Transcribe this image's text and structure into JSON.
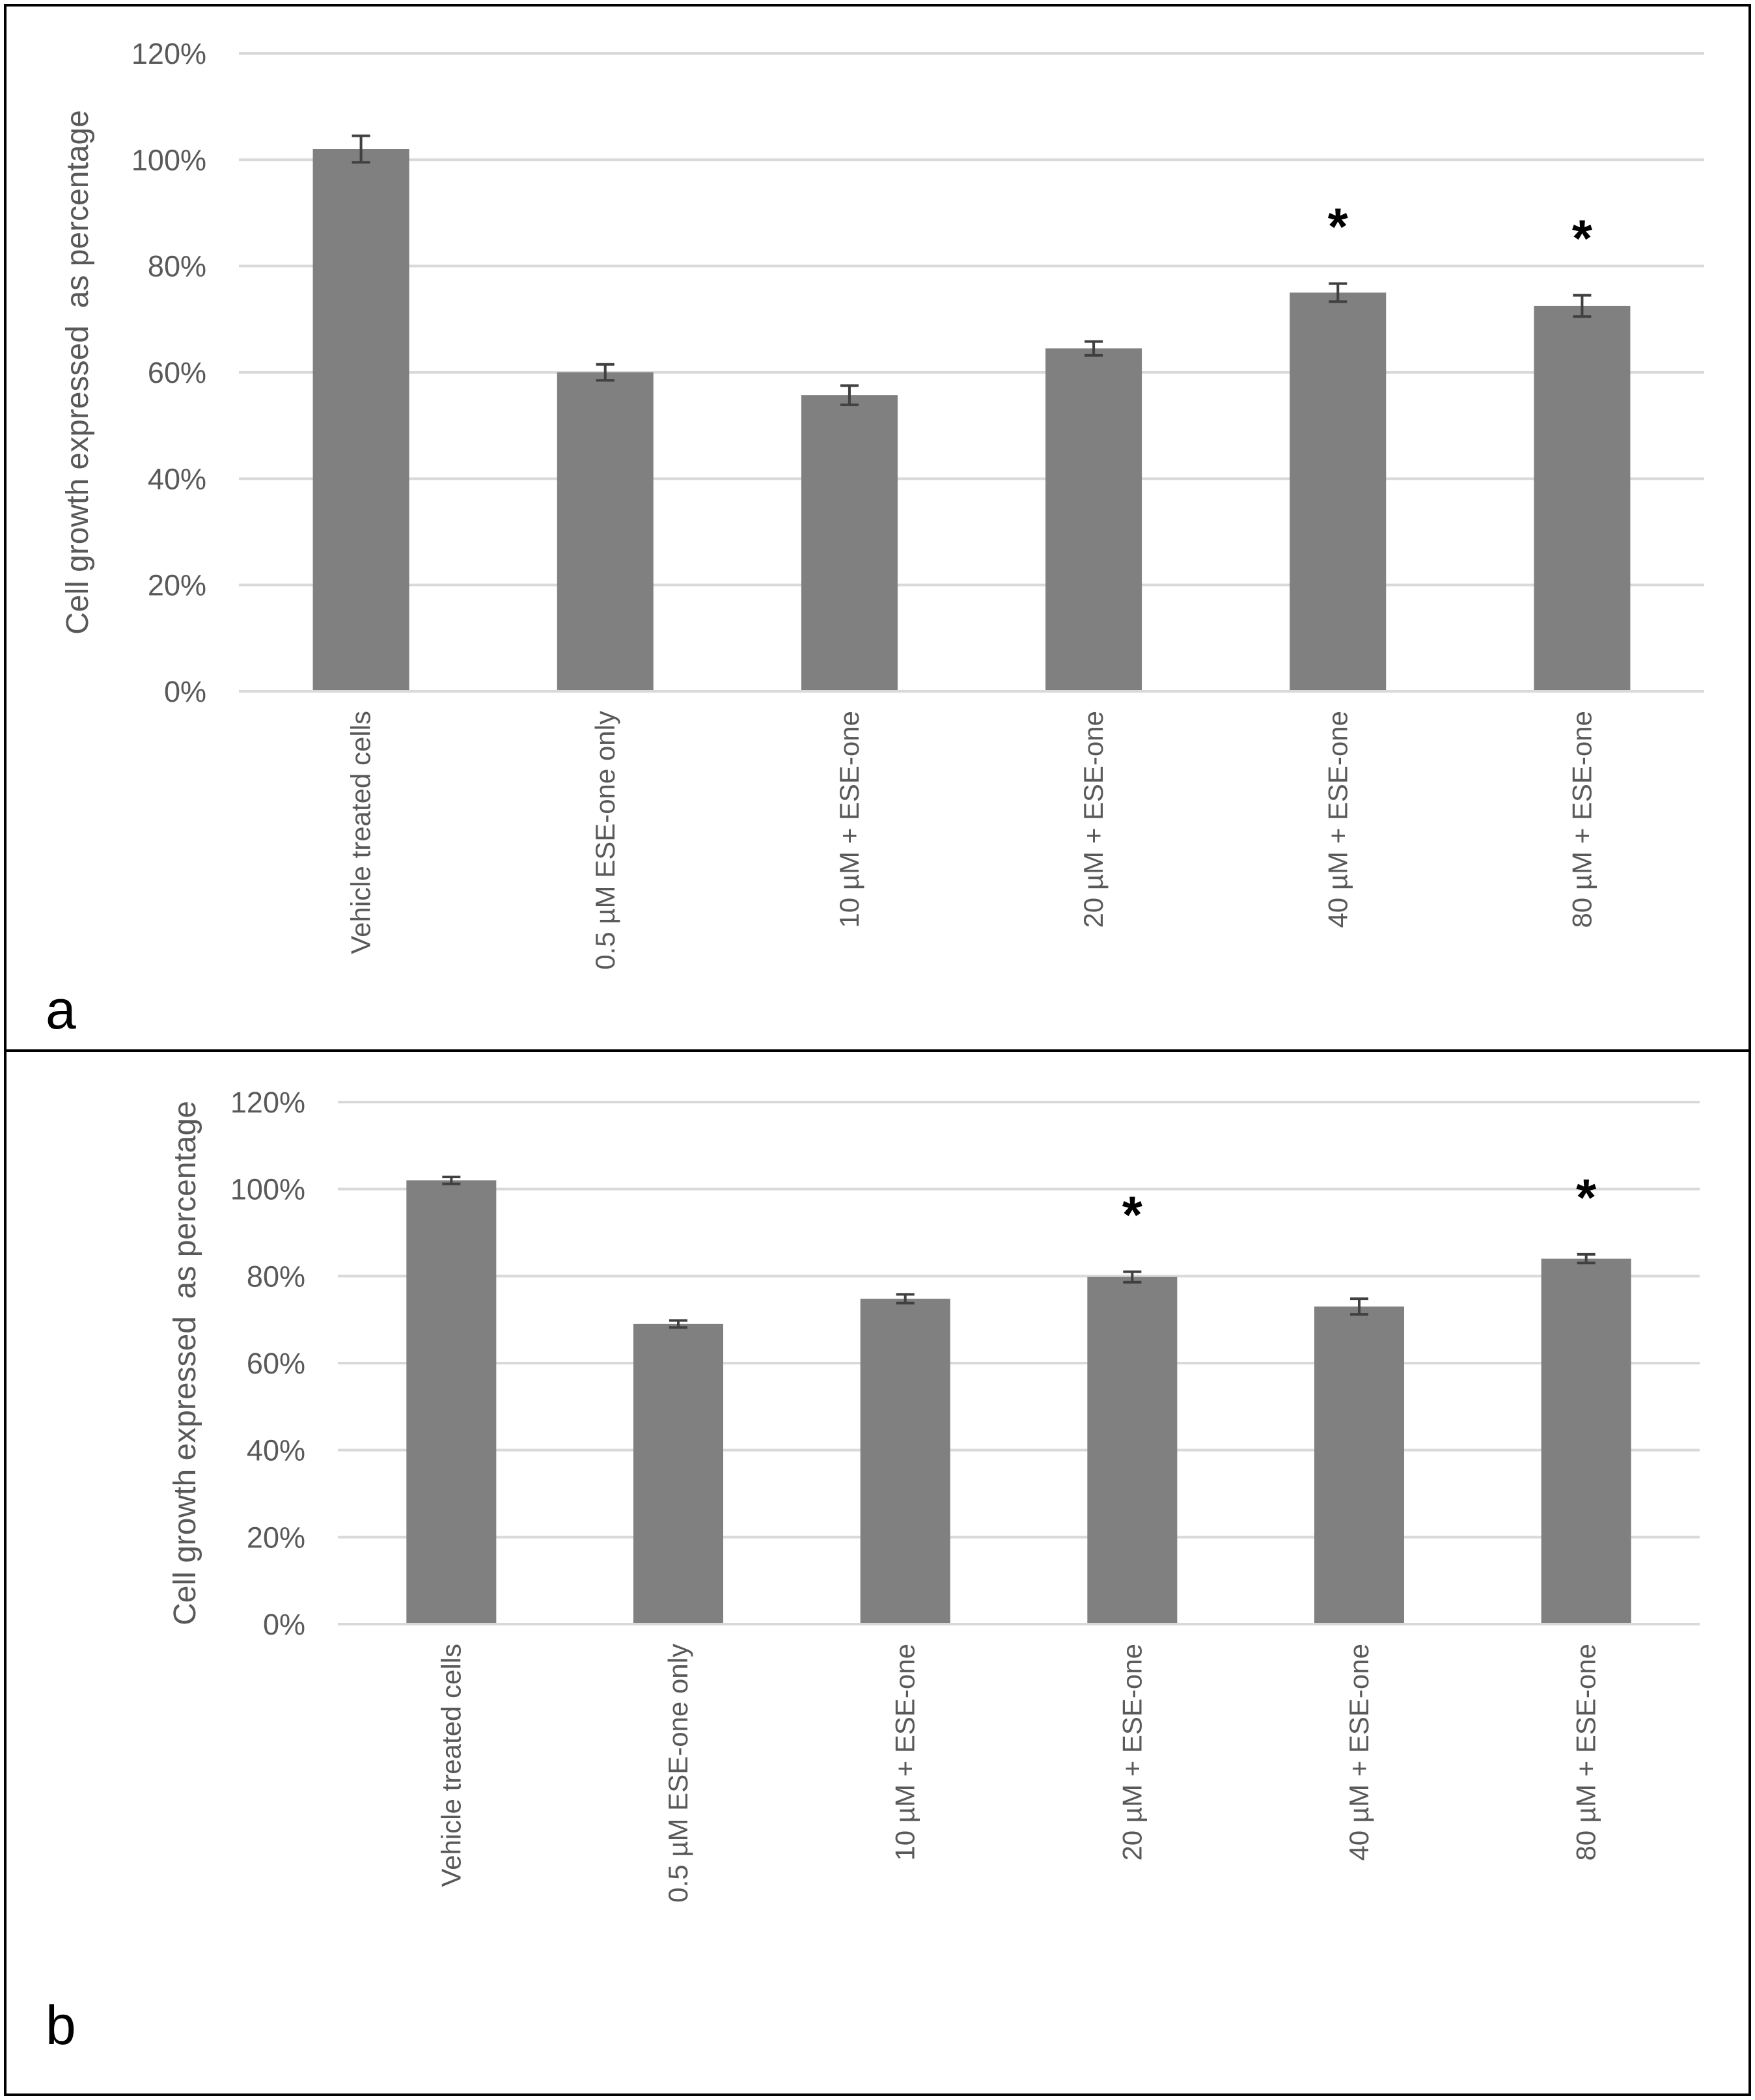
{
  "chart_data": [
    {
      "type": "bar",
      "panel": "a",
      "y_label": "Cell growth expressed  as percentage",
      "categories": [
        "Vehicle treated cells",
        "0.5 µM ESE-one only",
        "10 µM + ESE-one",
        "20 µM + ESE-one",
        "40 µM + ESE-one",
        "80 µM + ESE-one"
      ],
      "values": [
        102,
        60,
        55.7,
        64.5,
        75,
        72.5
      ],
      "errors": [
        2.5,
        1.5,
        1.8,
        1.3,
        1.7,
        2
      ],
      "significance": [
        null,
        null,
        null,
        null,
        "*",
        "*"
      ],
      "color": "#808080",
      "ylim": [
        0,
        120
      ],
      "yticks": [
        {
          "value": 0,
          "label": "0%"
        },
        {
          "value": 20,
          "label": "20%"
        },
        {
          "value": 40,
          "label": "40%"
        },
        {
          "value": 60,
          "label": "60%"
        },
        {
          "value": 80,
          "label": "80%"
        },
        {
          "value": 100,
          "label": "100%"
        },
        {
          "value": 120,
          "label": "120%"
        }
      ],
      "grid": true
    },
    {
      "type": "bar",
      "panel": "b",
      "y_label": "Cell growth expressed  as percentage",
      "categories": [
        "Vehicle treated cells",
        "0.5 µM ESE-one only",
        "10 µM + ESE-one",
        "20 µM + ESE-one",
        "40 µM + ESE-one",
        "80 µM + ESE-one"
      ],
      "values": [
        102,
        69,
        74.8,
        79.8,
        73,
        84
      ],
      "errors": [
        0.8,
        0.8,
        1,
        1.2,
        1.8,
        1
      ],
      "significance": [
        null,
        null,
        null,
        "*",
        null,
        "*"
      ],
      "color": "#808080",
      "ylim": [
        0,
        120
      ],
      "yticks": [
        {
          "value": 0,
          "label": "0%"
        },
        {
          "value": 20,
          "label": "20%"
        },
        {
          "value": 40,
          "label": "40%"
        },
        {
          "value": 60,
          "label": "60%"
        },
        {
          "value": 80,
          "label": "80%"
        },
        {
          "value": 100,
          "label": "100%"
        },
        {
          "value": 120,
          "label": "120%"
        }
      ],
      "grid": true
    }
  ]
}
